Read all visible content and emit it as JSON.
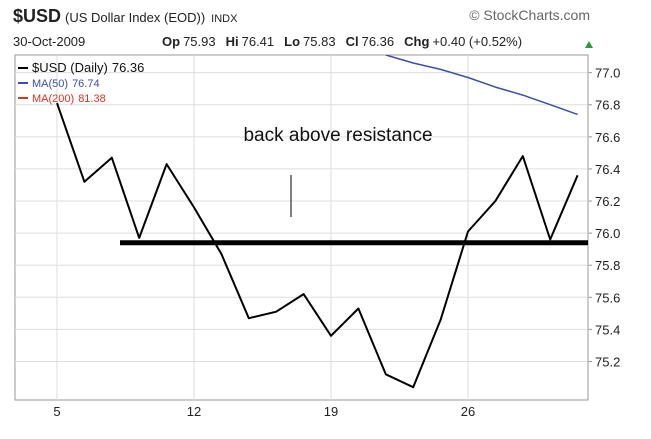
{
  "header": {
    "symbol": "$USD",
    "name": "(US Dollar Index (EOD))",
    "exchange": "INDX",
    "source": "© StockCharts.com",
    "date": "30-Oct-2009",
    "quote": [
      {
        "label": "Op",
        "value": "75.93"
      },
      {
        "label": "Hi",
        "value": "76.41"
      },
      {
        "label": "Lo",
        "value": "75.83"
      },
      {
        "label": "Cl",
        "value": "76.36"
      },
      {
        "label": "Chg",
        "value": "+0.40 (+0.52%)"
      }
    ]
  },
  "chart_data": {
    "type": "line",
    "categories": [
      "5",
      null,
      null,
      null,
      null,
      "12",
      null,
      null,
      null,
      null,
      "19",
      null,
      null,
      null,
      null,
      "26",
      null,
      null,
      null,
      null
    ],
    "series": [
      {
        "name": "$USD (Daily)",
        "color": "#000000",
        "last": 76.36,
        "values": [
          76.81,
          76.32,
          76.47,
          75.97,
          76.43,
          76.16,
          75.87,
          75.47,
          75.51,
          75.62,
          75.36,
          75.53,
          75.12,
          75.04,
          75.46,
          76.01,
          76.2,
          76.48,
          75.96,
          76.36
        ]
      },
      {
        "name": "MA(50)",
        "color": "#3a4fb0",
        "last": 76.74,
        "values": [
          null,
          null,
          null,
          null,
          null,
          null,
          null,
          null,
          null,
          null,
          null,
          null,
          77.11,
          77.06,
          77.02,
          76.97,
          76.91,
          76.86,
          76.8,
          76.74
        ]
      },
      {
        "name": "MA(200)",
        "color": "#e0301e",
        "last": 81.38,
        "values": [
          null,
          null,
          null,
          null,
          null,
          null,
          null,
          null,
          null,
          null,
          null,
          null,
          null,
          null,
          null,
          null,
          null,
          null,
          null,
          null
        ]
      }
    ],
    "resistance": 75.94,
    "annotation": "back above resistance",
    "ylim": [
      74.96,
      77.11
    ],
    "yticks": [
      75.2,
      75.4,
      75.6,
      75.8,
      {
        "value": 76,
        "label": "76.0"
      },
      76.2,
      76.4,
      76.6,
      76.8,
      {
        "value": 77,
        "label": "77.0"
      }
    ],
    "grid": true
  }
}
